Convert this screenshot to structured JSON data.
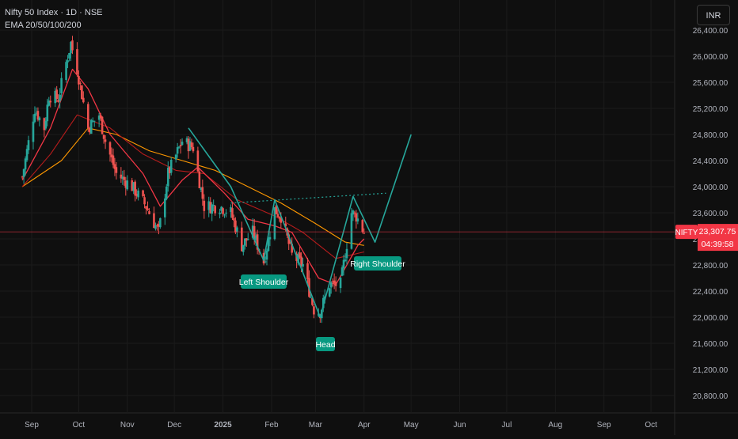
{
  "header": {
    "symbol_line": "Nifty 50 Index · 1D · NSE",
    "indicator_line": "EMA 20/50/100/200",
    "currency_button": "INR"
  },
  "price_scale": {
    "ticks": [
      "26,400.00",
      "26,000.00",
      "25,600.00",
      "25,200.00",
      "24,800.00",
      "24,400.00",
      "24,000.00",
      "23,600.00",
      "23,200.00",
      "22,800.00",
      "22,400.00",
      "22,000.00",
      "21,600.00",
      "21,200.00",
      "20,800.00"
    ],
    "ticker_badge": "NIFTY",
    "last_price": "23,307.75",
    "countdown": "04:39:58",
    "last_price_color": "#f23645"
  },
  "time_scale": {
    "labels": [
      "Sep",
      "Oct",
      "Nov",
      "Dec",
      "2025",
      "Feb",
      "Mar",
      "Apr",
      "May",
      "Jun",
      "Jul",
      "Aug",
      "Sep",
      "Oct"
    ]
  },
  "pattern_labels": {
    "left_shoulder": "Left Shoulder",
    "head": "Head",
    "right_shoulder": "Right Shoulder"
  },
  "colors": {
    "up": "#26a69a",
    "down": "#ef5350",
    "ema20": "#f23645",
    "ema50": "#b71c1c",
    "ema100": "#ff9800",
    "pattern": "#26a69a",
    "label_bg": "#089981"
  },
  "chart_data": {
    "type": "candlestick",
    "title": "Nifty 50 Index · 1D · NSE",
    "y_range": [
      20700,
      26550
    ],
    "x_range": [
      "2024-08-26",
      "2025-10-25"
    ],
    "last_price": 23307.75,
    "price_path": [
      [
        "2024-08-26",
        24150
      ],
      [
        "2024-09-03",
        25200
      ],
      [
        "2024-09-09",
        24900
      ],
      [
        "2024-09-12",
        25400
      ],
      [
        "2024-09-18",
        25350
      ],
      [
        "2024-09-23",
        25900
      ],
      [
        "2024-09-26",
        26200
      ],
      [
        "2024-09-30",
        25800
      ],
      [
        "2024-10-07",
        24900
      ],
      [
        "2024-10-14",
        25100
      ],
      [
        "2024-10-18",
        24700
      ],
      [
        "2024-10-25",
        24200
      ],
      [
        "2024-11-04",
        24000
      ],
      [
        "2024-11-13",
        23700
      ],
      [
        "2024-11-21",
        23300
      ],
      [
        "2024-11-27",
        24200
      ],
      [
        "2024-12-06",
        24700
      ],
      [
        "2024-12-13",
        24600
      ],
      [
        "2024-12-20",
        23700
      ],
      [
        "2024-12-30",
        23700
      ],
      [
        "2025-01-06",
        23600
      ],
      [
        "2025-01-13",
        23100
      ],
      [
        "2025-01-20",
        23300
      ],
      [
        "2025-01-27",
        22850
      ],
      [
        "2025-02-03",
        23650
      ],
      [
        "2025-02-07",
        23550
      ],
      [
        "2025-02-14",
        22950
      ],
      [
        "2025-02-21",
        22800
      ],
      [
        "2025-02-28",
        22120
      ],
      [
        "2025-03-04",
        22080
      ],
      [
        "2025-03-10",
        22500
      ],
      [
        "2025-03-17",
        22500
      ],
      [
        "2025-03-24",
        23600
      ],
      [
        "2025-03-27",
        23550
      ],
      [
        "2025-04-01",
        23300
      ]
    ],
    "ema20": [
      [
        "2024-08-26",
        24100
      ],
      [
        "2024-09-13",
        24900
      ],
      [
        "2024-09-27",
        25800
      ],
      [
        "2024-10-07",
        25500
      ],
      [
        "2024-10-21",
        24800
      ],
      [
        "2024-11-11",
        24200
      ],
      [
        "2024-11-22",
        23700
      ],
      [
        "2024-12-06",
        24100
      ],
      [
        "2024-12-16",
        24300
      ],
      [
        "2025-01-02",
        23900
      ],
      [
        "2025-01-17",
        23500
      ],
      [
        "2025-02-03",
        23400
      ],
      [
        "2025-02-14",
        23300
      ],
      [
        "2025-03-03",
        22600
      ],
      [
        "2025-03-14",
        22500
      ],
      [
        "2025-03-28",
        23100
      ],
      [
        "2025-04-01",
        23200
      ]
    ],
    "ema50": [
      [
        "2024-08-26",
        24000
      ],
      [
        "2024-09-13",
        24500
      ],
      [
        "2024-09-30",
        25100
      ],
      [
        "2024-10-21",
        24900
      ],
      [
        "2024-11-11",
        24500
      ],
      [
        "2024-12-02",
        24250
      ],
      [
        "2024-12-20",
        24200
      ],
      [
        "2025-01-10",
        23800
      ],
      [
        "2025-02-03",
        23550
      ],
      [
        "2025-02-21",
        23300
      ],
      [
        "2025-03-14",
        22900
      ],
      [
        "2025-04-01",
        23000
      ]
    ],
    "ema100": [
      [
        "2024-08-26",
        24000
      ],
      [
        "2024-09-20",
        24400
      ],
      [
        "2024-10-07",
        24900
      ],
      [
        "2024-10-25",
        24800
      ],
      [
        "2024-11-15",
        24550
      ],
      [
        "2024-12-06",
        24400
      ],
      [
        "2024-12-27",
        24250
      ],
      [
        "2025-01-17",
        24000
      ],
      [
        "2025-02-07",
        23750
      ],
      [
        "2025-02-28",
        23450
      ],
      [
        "2025-03-20",
        23150
      ],
      [
        "2025-04-01",
        23100
      ]
    ],
    "pattern_line": [
      [
        "2024-12-10",
        24900
      ],
      [
        "2025-01-06",
        24000
      ],
      [
        "2025-01-27",
        22870
      ],
      [
        "2025-02-03",
        23800
      ],
      [
        "2025-03-04",
        22000
      ],
      [
        "2025-03-25",
        23850
      ],
      [
        "2025-04-08",
        23150
      ],
      [
        "2025-05-01",
        24800
      ]
    ],
    "neckline": [
      [
        "2025-01-06",
        23750
      ],
      [
        "2025-04-15",
        23900
      ]
    ],
    "annotations": [
      "Left Shoulder",
      "Head",
      "Right Shoulder"
    ]
  }
}
